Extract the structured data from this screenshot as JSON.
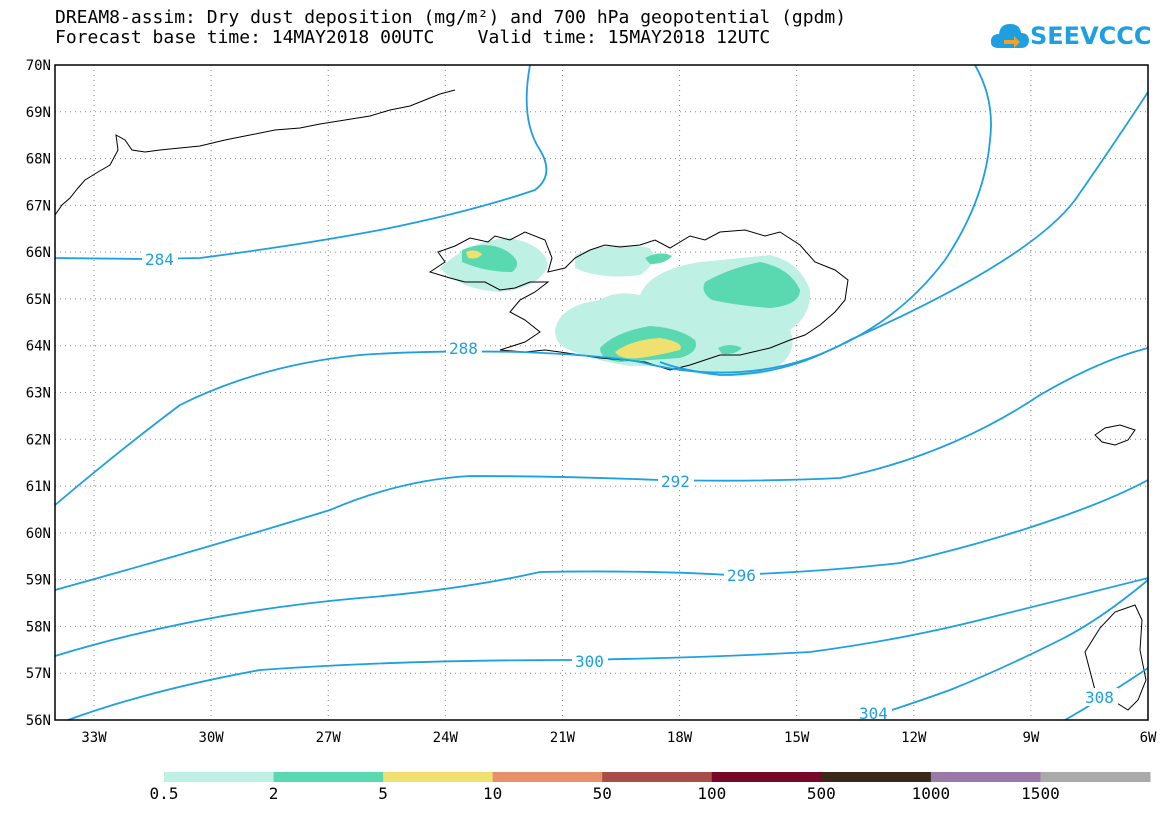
{
  "title": {
    "line1": "DREAM8-assim: Dry dust deposition (mg/m²) and 700 hPa geopotential (gpdm)",
    "line2": "Forecast base time: 14MAY2018 00UTC    Valid time: 15MAY2018 12UTC"
  },
  "logo": {
    "text": "SEEVCCC",
    "icon": "cloud-arrow-icon",
    "color": "#1ea0e0"
  },
  "axes": {
    "lat_labels": [
      "70N",
      "69N",
      "68N",
      "67N",
      "66N",
      "65N",
      "64N",
      "63N",
      "62N",
      "61N",
      "60N",
      "59N",
      "58N",
      "57N",
      "56N"
    ],
    "lon_labels": [
      "33W",
      "30W",
      "27W",
      "24W",
      "21W",
      "18W",
      "15W",
      "12W",
      "9W",
      "6W"
    ]
  },
  "contours": {
    "color": "#1ea0e0",
    "labels": [
      "284",
      "288",
      "292",
      "296",
      "300",
      "304",
      "308"
    ]
  },
  "colorbar": {
    "colors": [
      "#bff0e4",
      "#5ad8b0",
      "#f0e070",
      "#e8906a",
      "#a84e48",
      "#780828",
      "#3a2818",
      "#9a78a8",
      "#aaaaaa"
    ],
    "labels": [
      "0.5",
      "2",
      "5",
      "10",
      "50",
      "100",
      "500",
      "1000",
      "1500"
    ]
  }
}
